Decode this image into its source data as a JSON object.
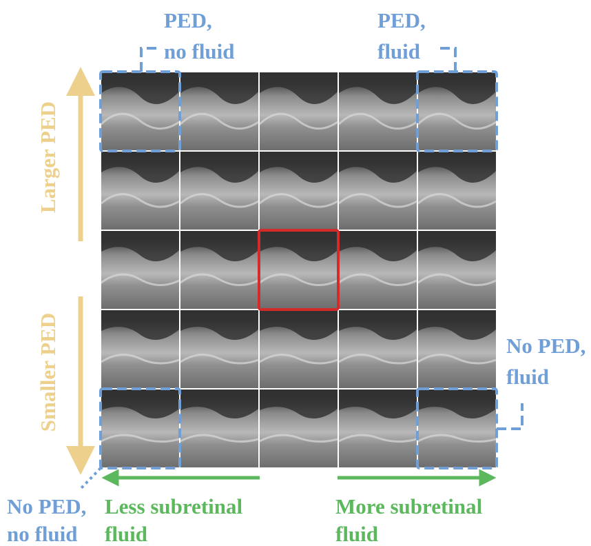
{
  "labels": {
    "top_left": [
      "PED,",
      "no fluid"
    ],
    "top_right": [
      "PED,",
      "fluid"
    ],
    "right": [
      "No PED,",
      "fluid"
    ],
    "bottom_left": [
      "No PED,",
      "no fluid"
    ]
  },
  "axes": {
    "up": "Larger PED",
    "down": "Smaller PED",
    "left": [
      "Less subretinal",
      "fluid"
    ],
    "right": [
      "More subretinal",
      "fluid"
    ]
  }
}
